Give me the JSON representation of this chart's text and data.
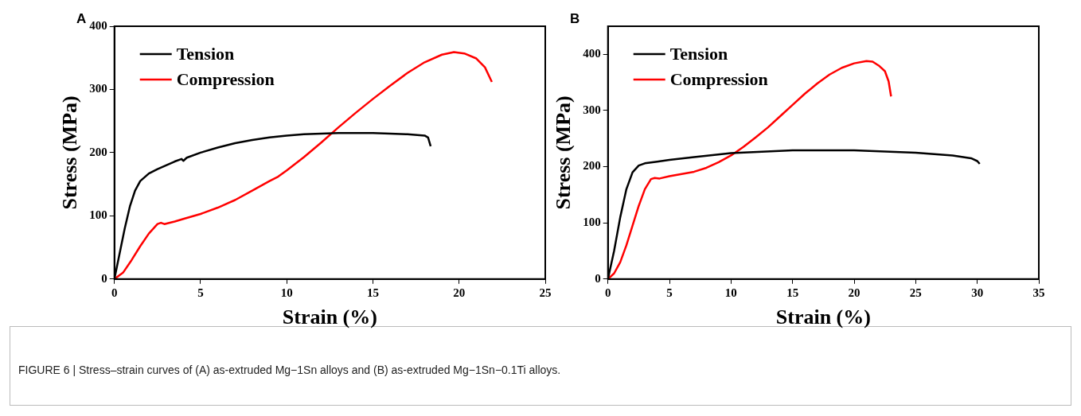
{
  "chart_data": [
    {
      "type": "line",
      "title": "A",
      "xlabel": "Strain (%)",
      "ylabel": "Stress (MPa)",
      "xlim": [
        0,
        25
      ],
      "xticks": [
        0,
        5,
        10,
        15,
        20,
        25
      ],
      "ylim": [
        0,
        400
      ],
      "yticks": [
        0,
        100,
        200,
        300,
        400
      ],
      "grid": false,
      "legend": "top left",
      "marker": "none",
      "line_style": "solid",
      "series": [
        {
          "name": "Tension",
          "color": "#000000",
          "x": [
            0,
            0.3,
            0.6,
            0.9,
            1.2,
            1.5,
            2,
            2.5,
            3,
            3.5,
            3.9,
            4,
            4.2,
            5,
            6,
            7,
            8,
            9,
            10,
            11,
            12,
            13,
            14,
            15,
            16,
            17,
            18,
            18.2,
            18.35
          ],
          "values": [
            0,
            40,
            80,
            115,
            140,
            155,
            167,
            174,
            180,
            186,
            190,
            187,
            192,
            200,
            208,
            215,
            220,
            224,
            227,
            229,
            230,
            231,
            231,
            231,
            230,
            229,
            227,
            224,
            210
          ]
        },
        {
          "name": "Compression",
          "color": "#ff0000",
          "x": [
            0,
            0.5,
            1,
            1.5,
            2,
            2.5,
            2.7,
            2.9,
            3.5,
            4,
            5,
            6,
            7,
            8,
            9,
            9.5,
            10,
            11,
            12,
            13,
            14,
            15,
            16,
            17,
            18,
            19,
            19.7,
            20.3,
            21,
            21.5,
            21.9
          ],
          "values": [
            0,
            10,
            30,
            52,
            72,
            87,
            89,
            87,
            91,
            95,
            103,
            113,
            125,
            140,
            155,
            162,
            172,
            193,
            216,
            240,
            263,
            285,
            306,
            326,
            343,
            355,
            359,
            357,
            349,
            335,
            312
          ]
        }
      ],
      "annotations": [
        "FIGURE 6 | Stress–strain curves of (A) as-extruded Mg−1Sn alloys and (B) as-extruded Mg−1Sn−0.1Ti alloys."
      ]
    },
    {
      "type": "line",
      "title": "B",
      "xlabel": "Strain (%)",
      "ylabel": "Stress (MPa)",
      "xlim": [
        0,
        35
      ],
      "xticks": [
        0,
        5,
        10,
        15,
        20,
        25,
        30,
        35
      ],
      "ylim": [
        0,
        450
      ],
      "yticks": [
        0,
        100,
        200,
        300,
        400
      ],
      "grid": false,
      "legend": "top left",
      "marker": "none",
      "line_style": "solid",
      "series": [
        {
          "name": "Tension",
          "color": "#000000",
          "x": [
            0,
            0.5,
            1,
            1.5,
            2,
            2.5,
            3,
            4,
            5,
            7,
            10,
            15,
            20,
            25,
            28,
            29.5,
            30,
            30.2
          ],
          "values": [
            0,
            50,
            110,
            160,
            190,
            202,
            206,
            209,
            212,
            217,
            224,
            229,
            229,
            225,
            220,
            215,
            210,
            205
          ]
        },
        {
          "name": "Compression",
          "color": "#ff0000",
          "x": [
            0,
            0.5,
            1,
            1.5,
            2,
            2.5,
            3,
            3.5,
            3.8,
            4.2,
            5,
            6,
            7,
            8,
            9,
            10,
            11,
            12,
            13,
            14,
            15,
            16,
            17,
            18,
            19,
            20,
            21,
            21.5,
            22,
            22.5,
            22.8,
            23
          ],
          "values": [
            0,
            10,
            30,
            60,
            95,
            130,
            160,
            178,
            180,
            179,
            183,
            187,
            191,
            198,
            208,
            220,
            235,
            252,
            270,
            290,
            310,
            330,
            348,
            364,
            376,
            384,
            388,
            387,
            380,
            370,
            352,
            325
          ]
        }
      ]
    }
  ]
}
